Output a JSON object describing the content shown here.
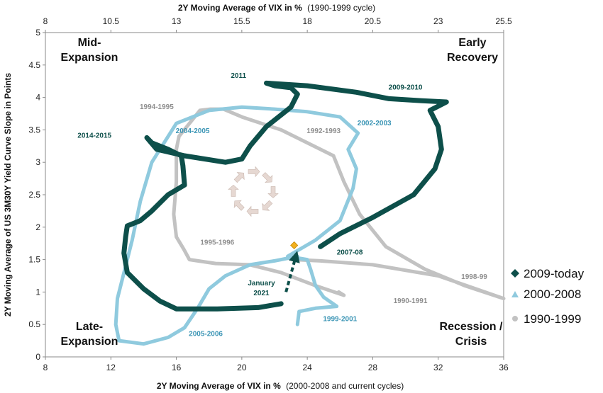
{
  "chart_data": {
    "type": "line",
    "top_axis_title": "2Y Moving Average of VIX in %",
    "top_axis_suffix": "(1990-1999 cycle)",
    "bottom_axis_title": "2Y Moving Average of VIX in %",
    "bottom_axis_suffix": "(2000-2008 and current cycles)",
    "ylabel": "2Y Moving Average of US 3M30Y Yield Curve Slope in Points",
    "xlim": [
      8,
      36
    ],
    "x_ticks": [
      "8",
      "12",
      "16",
      "20",
      "24",
      "28",
      "32",
      "36"
    ],
    "top_xlim": [
      8,
      25.5
    ],
    "top_ticks": [
      "8",
      "10.5",
      "13",
      "15.5",
      "18",
      "20.5",
      "23",
      "25.5"
    ],
    "ylim": [
      0,
      5
    ],
    "y_ticks": [
      "0",
      "0.5",
      "1",
      "1.5",
      "2",
      "2.5",
      "3",
      "3.5",
      "4",
      "4.5",
      "5"
    ],
    "quadrants": {
      "top_left": [
        "Mid-",
        "Expansion"
      ],
      "top_right": [
        "Early",
        "Recovery"
      ],
      "bottom_left": [
        "Late-",
        "Expansion"
      ],
      "bottom_right": [
        "Recession /",
        "Crisis"
      ]
    },
    "series": [
      {
        "name": "2009-today",
        "color": "#0d4f4a",
        "marker": "diamond",
        "axis": "bottom",
        "points": [
          [
            22.4,
            0.82
          ],
          [
            21.0,
            0.76
          ],
          [
            18.5,
            0.74
          ],
          [
            16.0,
            0.74
          ],
          [
            15.0,
            0.86
          ],
          [
            14.0,
            1.05
          ],
          [
            13.0,
            1.3
          ],
          [
            12.8,
            1.6
          ],
          [
            12.9,
            1.85
          ],
          [
            13.0,
            2.02
          ],
          [
            13.8,
            2.1
          ],
          [
            14.5,
            2.25
          ],
          [
            15.5,
            2.5
          ],
          [
            16.5,
            2.65
          ],
          [
            16.4,
            2.95
          ],
          [
            16.3,
            3.1
          ],
          [
            15.5,
            3.2
          ],
          [
            14.5,
            3.3
          ],
          [
            14.2,
            3.38
          ],
          [
            14.8,
            3.2
          ],
          [
            16.5,
            3.1
          ],
          [
            19.0,
            3.0
          ],
          [
            20.0,
            3.05
          ],
          [
            20.5,
            3.25
          ],
          [
            21.5,
            3.55
          ],
          [
            22.5,
            3.75
          ],
          [
            23.0,
            3.85
          ],
          [
            23.4,
            4.05
          ],
          [
            23.0,
            4.15
          ],
          [
            22.0,
            4.18
          ],
          [
            21.5,
            4.22
          ],
          [
            24.0,
            4.18
          ],
          [
            27.0,
            4.08
          ],
          [
            29.0,
            3.98
          ],
          [
            31.0,
            3.95
          ],
          [
            32.5,
            3.93
          ],
          [
            31.5,
            3.8
          ],
          [
            32.0,
            3.55
          ],
          [
            32.2,
            3.2
          ],
          [
            31.8,
            2.9
          ],
          [
            30.5,
            2.5
          ],
          [
            28.0,
            2.15
          ],
          [
            26.0,
            1.9
          ],
          [
            24.8,
            1.7
          ]
        ]
      },
      {
        "name": "2000-2008",
        "color": "#8fcade",
        "marker": "triangle",
        "axis": "bottom",
        "points": [
          [
            23.4,
            0.5
          ],
          [
            23.5,
            0.7
          ],
          [
            24.5,
            0.75
          ],
          [
            25.8,
            0.78
          ],
          [
            25.0,
            0.92
          ],
          [
            24.5,
            1.1
          ],
          [
            24.2,
            1.35
          ],
          [
            24.0,
            1.5
          ],
          [
            22.8,
            1.55
          ],
          [
            24.5,
            1.8
          ],
          [
            26.0,
            2.1
          ],
          [
            26.8,
            2.6
          ],
          [
            27.0,
            2.9
          ],
          [
            26.5,
            3.2
          ],
          [
            27.1,
            3.45
          ],
          [
            26.0,
            3.7
          ],
          [
            24.0,
            3.78
          ],
          [
            22.0,
            3.82
          ],
          [
            20.0,
            3.85
          ],
          [
            18.0,
            3.8
          ],
          [
            16.0,
            3.6
          ],
          [
            14.5,
            3.0
          ],
          [
            13.8,
            2.4
          ],
          [
            13.3,
            1.8
          ],
          [
            12.9,
            1.4
          ],
          [
            12.4,
            0.9
          ],
          [
            12.3,
            0.5
          ],
          [
            12.5,
            0.25
          ],
          [
            14.0,
            0.2
          ],
          [
            15.5,
            0.3
          ],
          [
            16.5,
            0.45
          ],
          [
            17.3,
            0.75
          ],
          [
            18.0,
            1.05
          ],
          [
            19.0,
            1.25
          ],
          [
            20.5,
            1.42
          ],
          [
            22.0,
            1.48
          ],
          [
            23.4,
            1.55
          ]
        ]
      },
      {
        "name": "1990-1999",
        "color": "#c2c2c2",
        "marker": "circle",
        "axis": "top",
        "points": [
          [
            19.2,
            1.0
          ],
          [
            19.4,
            0.95
          ],
          [
            18.3,
            1.1
          ],
          [
            17.0,
            1.3
          ],
          [
            15.8,
            1.42
          ],
          [
            14.5,
            1.44
          ],
          [
            13.5,
            1.5
          ],
          [
            13.3,
            1.65
          ],
          [
            13.0,
            1.85
          ],
          [
            12.9,
            2.2
          ],
          [
            13.0,
            2.7
          ],
          [
            13.0,
            3.2
          ],
          [
            13.1,
            3.4
          ],
          [
            13.9,
            3.8
          ],
          [
            14.3,
            3.82
          ],
          [
            14.8,
            3.82
          ],
          [
            15.5,
            3.7
          ],
          [
            17.0,
            3.5
          ],
          [
            19.0,
            3.1
          ],
          [
            19.4,
            2.7
          ],
          [
            20.0,
            2.2
          ],
          [
            21.0,
            1.7
          ],
          [
            22.5,
            1.35
          ],
          [
            24.0,
            1.1
          ],
          [
            25.5,
            0.9
          ],
          [
            23.0,
            1.25
          ],
          [
            20.5,
            1.42
          ],
          [
            18.5,
            1.48
          ],
          [
            17.5,
            1.5
          ]
        ]
      }
    ],
    "annotations": [
      {
        "text": "2011",
        "x": 19.8,
        "y": 4.3,
        "series": 0
      },
      {
        "text": "2009-2010",
        "x": 30.0,
        "y": 4.12,
        "series": 0
      },
      {
        "text": "2014-2015",
        "x": 11.0,
        "y": 3.38,
        "series": 0
      },
      {
        "text": "2007-08",
        "x": 26.6,
        "y": 1.58,
        "series": 0
      },
      {
        "text": "January",
        "x": 21.2,
        "y": 1.1,
        "series": 0
      },
      {
        "text": "2021",
        "x": 21.2,
        "y": 0.95,
        "series": 0
      },
      {
        "text": "2004-2005",
        "x": 17.0,
        "y": 3.45,
        "series": 1
      },
      {
        "text": "2002-2003",
        "x": 28.1,
        "y": 3.57,
        "series": 1
      },
      {
        "text": "1999-2001",
        "x": 26.0,
        "y": 0.55,
        "series": 1
      },
      {
        "text": "2005-2006",
        "x": 17.8,
        "y": 0.32,
        "series": 1
      },
      {
        "text": "1994-1995",
        "x": 14.8,
        "y": 3.82,
        "series": 2
      },
      {
        "text": "1992-1993",
        "x": 25.0,
        "y": 3.45,
        "series": 2
      },
      {
        "text": "1995-1996",
        "x": 18.5,
        "y": 1.73,
        "series": 2
      },
      {
        "text": "1998-99",
        "x": 34.2,
        "y": 1.2,
        "series": 2
      },
      {
        "text": "1990-1991",
        "x": 30.3,
        "y": 0.83,
        "series": 2
      }
    ],
    "marker_point": {
      "x": 23.2,
      "y": 1.72,
      "color": "#f2b01e"
    },
    "arrow": {
      "from": [
        22.7,
        1.0
      ],
      "to": [
        23.3,
        1.55
      ]
    },
    "cycle_icon": {
      "x": 20.7,
      "y": 2.55
    }
  }
}
